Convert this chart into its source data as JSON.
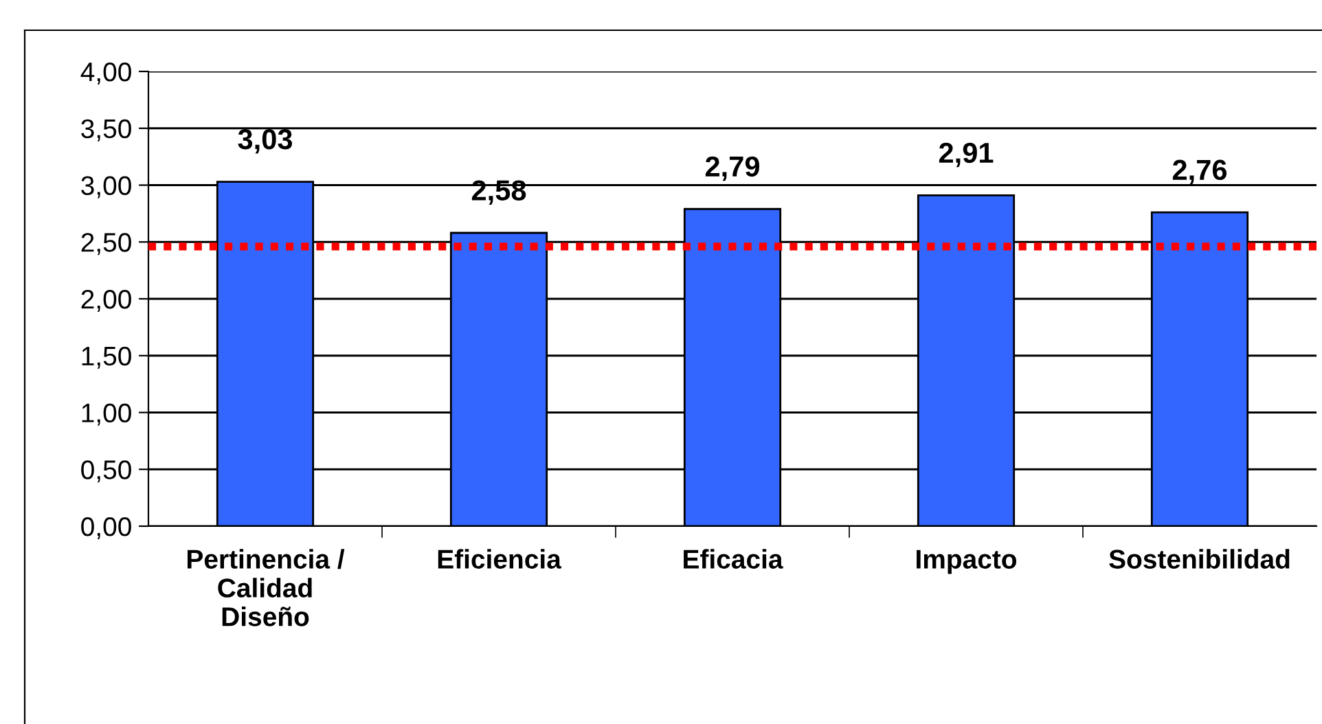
{
  "chart_data": {
    "type": "bar",
    "categories": [
      "Pertinencia / Calidad Diseño",
      "Eficiencia",
      "Eficacia",
      "Impacto",
      "Sostenibilidad"
    ],
    "values": [
      3.03,
      2.58,
      2.79,
      2.91,
      2.76
    ],
    "value_labels": [
      "3,03",
      "2,58",
      "2,79",
      "2,91",
      "2,76"
    ],
    "color": "#3366ff",
    "ylim": [
      0,
      4
    ],
    "yticks": [
      {
        "value": 0,
        "label": "0,00"
      },
      {
        "value": 0.5,
        "label": "0,50"
      },
      {
        "value": 1,
        "label": "1,00"
      },
      {
        "value": 1.5,
        "label": "1,50"
      },
      {
        "value": 2,
        "label": "2,00"
      },
      {
        "value": 2.5,
        "label": "2,50"
      },
      {
        "value": 3,
        "label": "3,00"
      },
      {
        "value": 3.5,
        "label": "3,50"
      },
      {
        "value": 4,
        "label": "4,00"
      }
    ],
    "ref_lines": [
      {
        "axis": "y",
        "value": 2.46,
        "color": "#ff0000",
        "line_style": "dotted"
      }
    ],
    "grid": "y",
    "legend": false
  }
}
